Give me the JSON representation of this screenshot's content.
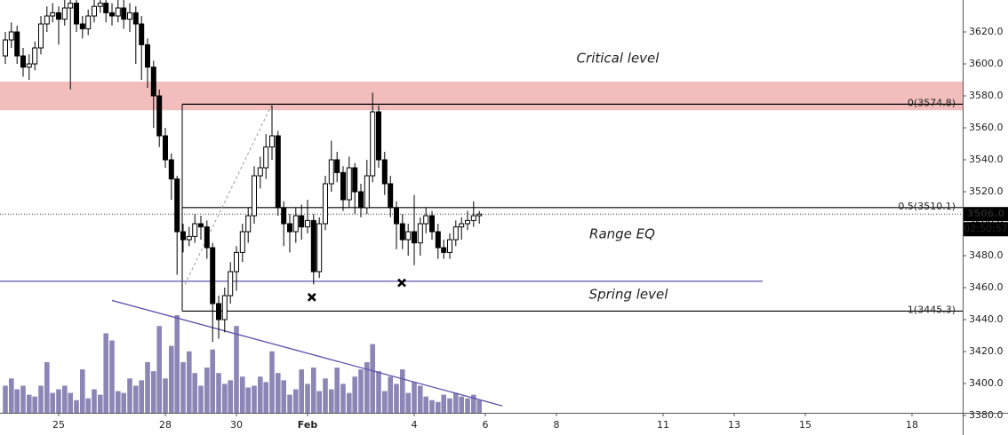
{
  "chart_data": {
    "type": "candlestick",
    "x": [
      23.5,
      23.67,
      23.83,
      24,
      24.17,
      24.33,
      24.5,
      24.67,
      24.83,
      25,
      25.17,
      25.33,
      25.5,
      25.67,
      25.83,
      26,
      26.17,
      26.33,
      26.5,
      26.67,
      26.83,
      27,
      27.17,
      27.33,
      27.5,
      27.67,
      27.83,
      28,
      28.17,
      28.33,
      28.5,
      28.67,
      28.83,
      29,
      29.17,
      29.33,
      29.5,
      29.67,
      29.83,
      30,
      30.17,
      30.33,
      30.5,
      30.67,
      30.83,
      31,
      31.17,
      31.33,
      31.5,
      31.67,
      31.83,
      32,
      32.17,
      32.33,
      32.5,
      32.67,
      32.83,
      33,
      33.17,
      33.33,
      33.5,
      33.67,
      33.83,
      34,
      34.17,
      34.33,
      34.5,
      34.67,
      34.83,
      35,
      35.17,
      35.33,
      35.5,
      35.67,
      35.83,
      36,
      36.17,
      36.33,
      36.5,
      36.67,
      36.83
    ],
    "open": [
      3605,
      3615,
      3620,
      3605,
      3598,
      3600,
      3610,
      3625,
      3630,
      3632,
      3628,
      3635,
      3638,
      3625,
      3622,
      3630,
      3636,
      3638,
      3632,
      3630,
      3635,
      3628,
      3632,
      3625,
      3612,
      3598,
      3580,
      3555,
      3540,
      3528,
      3495,
      3490,
      3492,
      3500,
      3498,
      3485,
      3450,
      3440,
      3455,
      3470,
      3482,
      3495,
      3505,
      3530,
      3535,
      3548,
      3555,
      3510,
      3500,
      3495,
      3505,
      3498,
      3502,
      3470,
      3500,
      3525,
      3540,
      3532,
      3515,
      3535,
      3520,
      3510,
      3530,
      3570,
      3540,
      3525,
      3510,
      3500,
      3490,
      3495,
      3488,
      3500,
      3505,
      3495,
      3485,
      3482,
      3490,
      3498,
      3500,
      3502,
      3505
    ],
    "high": [
      3620,
      3626,
      3624,
      3610,
      3606,
      3614,
      3630,
      3636,
      3638,
      3636,
      3640,
      3640,
      3640,
      3630,
      3634,
      3640,
      3640,
      3640,
      3638,
      3640,
      3640,
      3638,
      3636,
      3630,
      3616,
      3602,
      3584,
      3560,
      3544,
      3530,
      3500,
      3498,
      3506,
      3505,
      3502,
      3488,
      3455,
      3460,
      3476,
      3486,
      3500,
      3510,
      3536,
      3542,
      3556,
      3574,
      3558,
      3514,
      3506,
      3510,
      3512,
      3515,
      3506,
      3504,
      3530,
      3552,
      3545,
      3536,
      3542,
      3538,
      3525,
      3540,
      3582,
      3574,
      3545,
      3530,
      3514,
      3506,
      3500,
      3518,
      3504,
      3510,
      3508,
      3500,
      3490,
      3494,
      3502,
      3504,
      3508,
      3514,
      3508
    ],
    "low": [
      3600,
      3610,
      3600,
      3592,
      3590,
      3596,
      3606,
      3620,
      3626,
      3612,
      3624,
      3584,
      3620,
      3616,
      3618,
      3626,
      3632,
      3626,
      3624,
      3626,
      3622,
      3620,
      3600,
      3590,
      3585,
      3560,
      3548,
      3535,
      3515,
      3468,
      3482,
      3486,
      3488,
      3490,
      3478,
      3426,
      3428,
      3432,
      3450,
      3458,
      3476,
      3488,
      3500,
      3522,
      3528,
      3540,
      3505,
      3486,
      3482,
      3488,
      3490,
      3494,
      3462,
      3466,
      3496,
      3520,
      3526,
      3508,
      3510,
      3506,
      3504,
      3506,
      3526,
      3535,
      3518,
      3504,
      3484,
      3484,
      3480,
      3474,
      3480,
      3494,
      3490,
      3478,
      3478,
      3478,
      3486,
      3490,
      3496,
      3498,
      3500
    ],
    "close": [
      3615,
      3620,
      3605,
      3598,
      3600,
      3610,
      3625,
      3630,
      3632,
      3628,
      3635,
      3638,
      3625,
      3622,
      3630,
      3636,
      3638,
      3632,
      3630,
      3635,
      3628,
      3632,
      3625,
      3612,
      3598,
      3580,
      3555,
      3540,
      3528,
      3495,
      3490,
      3492,
      3500,
      3498,
      3485,
      3450,
      3440,
      3455,
      3470,
      3482,
      3495,
      3505,
      3530,
      3535,
      3548,
      3555,
      3510,
      3500,
      3495,
      3505,
      3498,
      3502,
      3470,
      3500,
      3525,
      3540,
      3532,
      3515,
      3535,
      3520,
      3510,
      3530,
      3570,
      3540,
      3525,
      3510,
      3500,
      3490,
      3495,
      3488,
      3500,
      3505,
      3495,
      3485,
      3482,
      3490,
      3498,
      3500,
      3502,
      3505,
      3506
    ],
    "volume": [
      30,
      38,
      26,
      30,
      20,
      18,
      30,
      56,
      22,
      26,
      30,
      22,
      14,
      48,
      16,
      26,
      20,
      88,
      80,
      24,
      22,
      38,
      30,
      36,
      56,
      46,
      96,
      38,
      74,
      108,
      56,
      68,
      44,
      30,
      50,
      70,
      44,
      32,
      36,
      96,
      40,
      28,
      30,
      40,
      34,
      68,
      44,
      36,
      20,
      26,
      48,
      32,
      50,
      24,
      38,
      26,
      50,
      32,
      22,
      40,
      48,
      56,
      76,
      46,
      24,
      40,
      32,
      48,
      22,
      34,
      30,
      18,
      14,
      12,
      20,
      16,
      22,
      18,
      16,
      20,
      14
    ],
    "up_color": "#ffffff",
    "down_color": "#000000",
    "volume_color": "#8c86b6",
    "xlim": [
      23.35,
      50.425
    ],
    "ylim": [
      3380,
      3640
    ],
    "xticks": [
      25,
      28,
      30,
      {
        "value": 32,
        "label": "Feb"
      },
      {
        "value": 35,
        "label": "4"
      },
      {
        "value": 37,
        "label": "6"
      },
      {
        "value": 39,
        "label": "8"
      },
      {
        "value": 42,
        "label": "11"
      },
      {
        "value": 44,
        "label": "13"
      },
      {
        "value": 46,
        "label": "15"
      },
      {
        "value": 49,
        "label": "18"
      }
    ],
    "yticks": [
      {
        "value": 3380,
        "label": "3380.0"
      },
      {
        "value": 3400,
        "label": "3400.0"
      },
      {
        "value": 3420,
        "label": "3420.0"
      },
      {
        "value": 3440,
        "label": "3440.0"
      },
      {
        "value": 3460,
        "label": "3460.0"
      },
      {
        "value": 3480,
        "label": "3480.0"
      },
      {
        "value": 3500,
        "label": "3500.0"
      },
      {
        "value": 3520,
        "label": "3520.0"
      },
      {
        "value": 3540,
        "label": "3540.0"
      },
      {
        "value": 3560,
        "label": "3560.0"
      },
      {
        "value": 3580,
        "label": "3580.0"
      },
      {
        "value": 3600,
        "label": "3600.0"
      },
      {
        "value": 3620,
        "label": "3620.0"
      }
    ],
    "zone": {
      "low": 3571,
      "high": 3589,
      "color": "#f2bdbd",
      "label": "Critical level"
    },
    "fib_levels": [
      {
        "value": 3574.8,
        "label": "0(3574.8)"
      },
      {
        "value": 3510.1,
        "label": "0.5(3510.1)"
      },
      {
        "value": 3445.3,
        "label": "1(3445.3)"
      }
    ],
    "range_label": "Range EQ",
    "spring_level": {
      "value": 3464,
      "label": "Spring level",
      "color": "#4a45a3"
    },
    "trendline": {
      "x": [
        26.5,
        37.48
      ],
      "y": [
        3452,
        3386
      ],
      "color": "#5a4fa8"
    },
    "fib_diagonal": {
      "x": [
        28.55,
        31
      ],
      "y": [
        3462,
        3574.8
      ]
    },
    "markers": {
      "x": [
        32.12,
        34.65
      ],
      "y": [
        3454,
        3463
      ]
    },
    "last_price": {
      "value": 3506,
      "label": "3506.0"
    },
    "countdown": "02:50:57"
  }
}
